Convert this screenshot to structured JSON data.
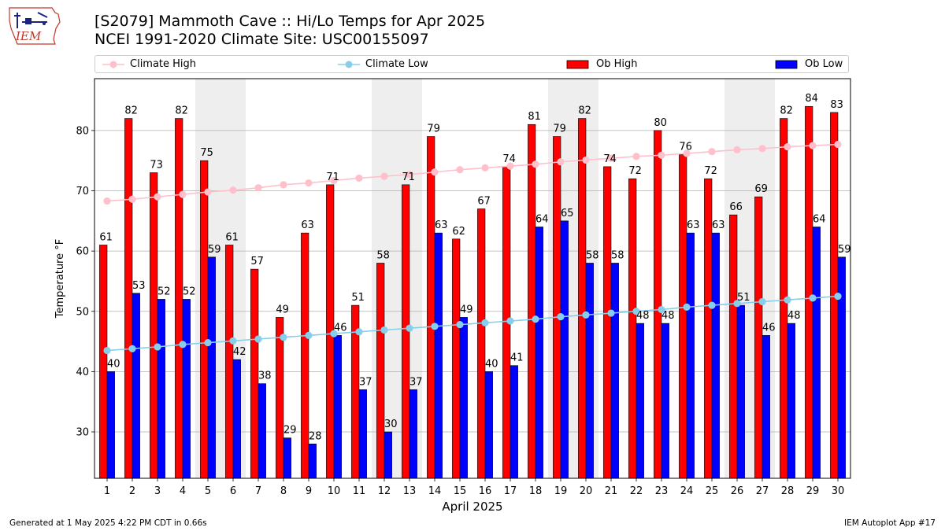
{
  "title_line1": "[S2079] Mammoth Cave :: Hi/Lo Temps for Apr 2025",
  "title_line2": "NCEI 1991-2020 Climate Site: USC00155097",
  "logo_text": "IEM",
  "legend": {
    "climate_high": "Climate High",
    "climate_low": "Climate Low",
    "ob_high": "Ob High",
    "ob_low": "Ob Low"
  },
  "colors": {
    "ob_high": "#ff0000",
    "ob_low": "#0000ff",
    "climate_high": "#ffc0cb",
    "climate_low": "#87ceeb",
    "weekend_shade": "#eeeeee",
    "grid": "#b0b0b0"
  },
  "footer": {
    "left": "Generated at 1 May 2025 4:22 PM CDT in 0.66s",
    "right": "IEM Autoplot App #17"
  },
  "chart_data": {
    "type": "bar",
    "xlabel": "April 2025",
    "ylabel": "Temperature °F",
    "ylim": [
      22.3,
      88.6
    ],
    "yticks": [
      30,
      40,
      50,
      60,
      70,
      80
    ],
    "grid": true,
    "legend_position": "top",
    "categories": [
      1,
      2,
      3,
      4,
      5,
      6,
      7,
      8,
      9,
      10,
      11,
      12,
      13,
      14,
      15,
      16,
      17,
      18,
      19,
      20,
      21,
      22,
      23,
      24,
      25,
      26,
      27,
      28,
      29,
      30
    ],
    "shaded_days": [
      [
        5,
        6
      ],
      [
        12,
        13
      ],
      [
        19,
        20
      ],
      [
        26,
        27
      ]
    ],
    "series": [
      {
        "name": "Ob High",
        "type": "bar",
        "values": [
          61,
          82,
          73,
          82,
          75,
          61,
          57,
          49,
          63,
          71,
          51,
          58,
          71,
          79,
          62,
          67,
          74,
          81,
          79,
          82,
          74,
          72,
          80,
          76,
          72,
          66,
          69,
          82,
          84,
          83
        ]
      },
      {
        "name": "Ob Low",
        "type": "bar",
        "values": [
          40,
          53,
          52,
          52,
          59,
          42,
          38,
          29,
          28,
          46,
          37,
          30,
          37,
          63,
          49,
          40,
          41,
          64,
          65,
          58,
          58,
          48,
          48,
          63,
          63,
          51,
          46,
          48,
          64,
          59
        ]
      },
      {
        "name": "Climate High",
        "type": "line",
        "values": [
          68.3,
          68.6,
          69.0,
          69.4,
          69.8,
          70.1,
          70.5,
          71.0,
          71.3,
          71.7,
          72.1,
          72.4,
          72.7,
          73.1,
          73.5,
          73.8,
          74.1,
          74.4,
          74.8,
          75.1,
          75.4,
          75.7,
          75.9,
          76.2,
          76.5,
          76.8,
          77.0,
          77.3,
          77.5,
          77.7
        ]
      },
      {
        "name": "Climate Low",
        "type": "line",
        "values": [
          43.5,
          43.8,
          44.1,
          44.5,
          44.8,
          45.1,
          45.4,
          45.7,
          46.0,
          46.3,
          46.6,
          46.9,
          47.2,
          47.5,
          47.8,
          48.1,
          48.4,
          48.7,
          49.1,
          49.4,
          49.7,
          50.0,
          50.3,
          50.7,
          51.0,
          51.3,
          51.6,
          51.9,
          52.2,
          52.5
        ]
      }
    ]
  }
}
